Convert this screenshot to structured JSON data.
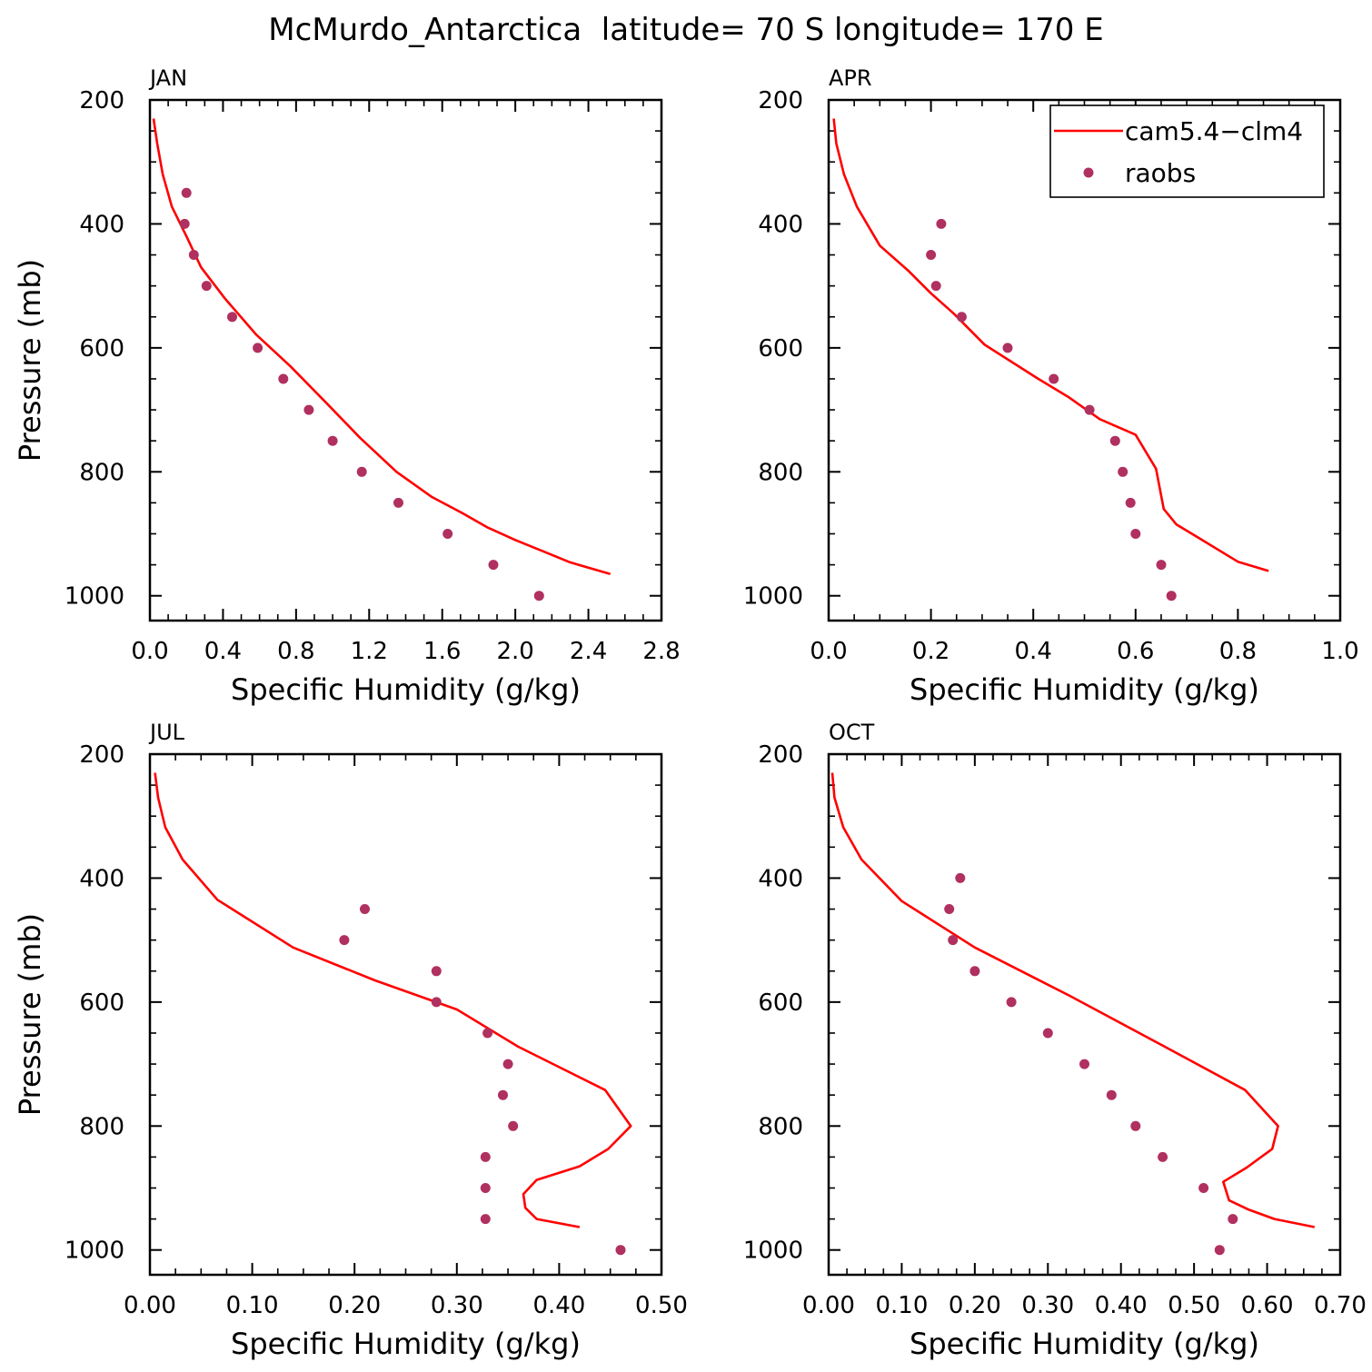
{
  "figure_title": "McMurdo_Antarctica  latitude= 70 S longitude= 170 E",
  "legend": {
    "entries": [
      {
        "label": "cam5.4−clm4",
        "kind": "line",
        "color": "#ff0000"
      },
      {
        "label": "raobs",
        "kind": "marker",
        "color": "#b03060"
      }
    ]
  },
  "colors": {
    "model": "#ff0000",
    "obs": "#b03060",
    "axis": "#000000"
  },
  "chart_data": [
    {
      "type": "line",
      "title": "JAN",
      "xlabel": "Specific Humidity (g/kg)",
      "ylabel": "Pressure (mb)",
      "xlim": [
        0,
        2.8
      ],
      "ylim": [
        200,
        1040
      ],
      "y_inverted": true,
      "xticks": [
        0,
        0.4,
        0.8,
        1.2,
        1.6,
        2.0,
        2.4,
        2.8
      ],
      "xtick_labels": [
        "0.0",
        "0.4",
        "0.8",
        "1.2",
        "1.6",
        "2.0",
        "2.4",
        "2.8"
      ],
      "yticks": [
        200,
        400,
        600,
        800,
        1000
      ],
      "ytick_labels": [
        "200",
        "400",
        "600",
        "800",
        "1000"
      ],
      "series": [
        {
          "name": "cam5.4−clm4",
          "x": [
            0.02,
            0.04,
            0.07,
            0.12,
            0.2,
            0.28,
            0.41,
            0.58,
            0.77,
            0.97,
            1.15,
            1.35,
            1.54,
            1.7,
            1.85,
            2.0,
            2.15,
            2.3,
            2.52
          ],
          "y": [
            230,
            270,
            320,
            372,
            420,
            470,
            520,
            578,
            630,
            690,
            745,
            800,
            840,
            865,
            890,
            910,
            928,
            946,
            965
          ]
        },
        {
          "name": "raobs",
          "x": [
            0.2,
            0.19,
            0.24,
            0.31,
            0.45,
            0.59,
            0.73,
            0.87,
            1.0,
            1.16,
            1.36,
            1.63,
            1.88,
            2.13
          ],
          "y": [
            350,
            400,
            450,
            500,
            550,
            600,
            650,
            700,
            750,
            800,
            850,
            900,
            950,
            1000
          ]
        }
      ]
    },
    {
      "type": "line",
      "title": "APR",
      "xlabel": "Specific Humidity (g/kg)",
      "ylabel": "",
      "xlim": [
        0,
        1.0
      ],
      "ylim": [
        200,
        1040
      ],
      "y_inverted": true,
      "xticks": [
        0,
        0.2,
        0.4,
        0.6,
        0.8,
        1.0
      ],
      "xtick_labels": [
        "0.0",
        "0.2",
        "0.4",
        "0.6",
        "0.8",
        "1.0"
      ],
      "yticks": [
        200,
        400,
        600,
        800,
        1000
      ],
      "ytick_labels": [
        "200",
        "400",
        "600",
        "800",
        "1000"
      ],
      "series": [
        {
          "name": "cam5.4−clm4",
          "x": [
            0.01,
            0.015,
            0.03,
            0.055,
            0.1,
            0.155,
            0.2,
            0.245,
            0.305,
            0.41,
            0.47,
            0.53,
            0.6,
            0.64,
            0.655,
            0.68,
            0.72,
            0.8,
            0.86
          ],
          "y": [
            230,
            270,
            320,
            372,
            435,
            475,
            512,
            545,
            595,
            650,
            680,
            715,
            740,
            795,
            860,
            885,
            905,
            945,
            960
          ]
        },
        {
          "name": "raobs",
          "x": [
            0.22,
            0.2,
            0.21,
            0.26,
            0.35,
            0.44,
            0.51,
            0.56,
            0.575,
            0.59,
            0.6,
            0.65,
            0.67
          ],
          "y": [
            400,
            450,
            500,
            550,
            600,
            650,
            700,
            750,
            800,
            850,
            900,
            950,
            1000
          ]
        }
      ]
    },
    {
      "type": "line",
      "title": "JUL",
      "xlabel": "Specific Humidity (g/kg)",
      "ylabel": "Pressure (mb)",
      "xlim": [
        0,
        0.5
      ],
      "ylim": [
        200,
        1040
      ],
      "y_inverted": true,
      "xticks": [
        0,
        0.1,
        0.2,
        0.3,
        0.4,
        0.5
      ],
      "xtick_labels": [
        "0.00",
        "0.10",
        "0.20",
        "0.30",
        "0.40",
        "0.50"
      ],
      "yticks": [
        200,
        400,
        600,
        800,
        1000
      ],
      "ytick_labels": [
        "200",
        "400",
        "600",
        "800",
        "1000"
      ],
      "series": [
        {
          "name": "cam5.4−clm4",
          "x": [
            0.005,
            0.008,
            0.015,
            0.032,
            0.066,
            0.14,
            0.22,
            0.3,
            0.36,
            0.445,
            0.47,
            0.448,
            0.42,
            0.378,
            0.365,
            0.367,
            0.378,
            0.42
          ],
          "y": [
            230,
            270,
            318,
            370,
            435,
            512,
            565,
            612,
            672,
            742,
            800,
            837,
            865,
            887,
            910,
            932,
            950,
            963
          ]
        },
        {
          "name": "raobs",
          "x": [
            0.21,
            0.19,
            0.28,
            0.28,
            0.33,
            0.35,
            0.345,
            0.355,
            0.328,
            0.328,
            0.328,
            0.46
          ],
          "y": [
            450,
            500,
            550,
            600,
            650,
            700,
            750,
            800,
            850,
            900,
            950,
            1000
          ]
        }
      ]
    },
    {
      "type": "line",
      "title": "OCT",
      "xlabel": "Specific Humidity (g/kg)",
      "ylabel": "",
      "xlim": [
        0,
        0.7
      ],
      "ylim": [
        200,
        1040
      ],
      "y_inverted": true,
      "xticks": [
        0,
        0.1,
        0.2,
        0.3,
        0.4,
        0.5,
        0.6,
        0.7
      ],
      "xtick_labels": [
        "0.00",
        "0.10",
        "0.20",
        "0.30",
        "0.40",
        "0.50",
        "0.60",
        "0.70"
      ],
      "yticks": [
        200,
        400,
        600,
        800,
        1000
      ],
      "ytick_labels": [
        "200",
        "400",
        "600",
        "800",
        "1000"
      ],
      "series": [
        {
          "name": "cam5.4−clm4",
          "x": [
            0.005,
            0.008,
            0.02,
            0.045,
            0.1,
            0.2,
            0.33,
            0.46,
            0.57,
            0.615,
            0.607,
            0.572,
            0.54,
            0.548,
            0.575,
            0.61,
            0.665
          ],
          "y": [
            230,
            270,
            318,
            370,
            437,
            512,
            590,
            672,
            742,
            800,
            837,
            867,
            890,
            920,
            935,
            950,
            963
          ]
        },
        {
          "name": "raobs",
          "x": [
            0.18,
            0.165,
            0.17,
            0.2,
            0.25,
            0.3,
            0.35,
            0.387,
            0.42,
            0.457,
            0.513,
            0.553,
            0.535
          ],
          "y": [
            400,
            450,
            500,
            550,
            600,
            650,
            700,
            750,
            800,
            850,
            900,
            950,
            1000
          ]
        }
      ]
    }
  ]
}
